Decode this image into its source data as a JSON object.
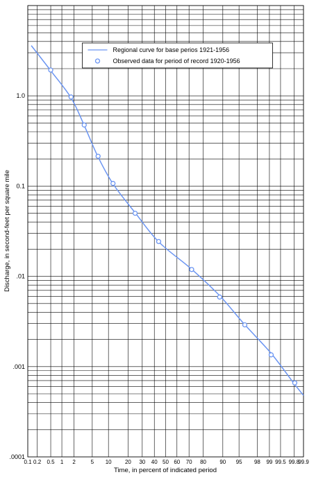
{
  "chart_data": {
    "type": "line",
    "xlabel": "Time, in percent of indicated period",
    "ylabel": "Discharge, in second-feet per square mile",
    "xscale": "probability",
    "yscale": "log",
    "xlim": [
      0.1,
      99.9
    ],
    "ylim": [
      0.0001,
      10
    ],
    "xticks": [
      0.1,
      0.2,
      0.5,
      1,
      2,
      5,
      10,
      20,
      30,
      40,
      50,
      60,
      70,
      80,
      90,
      95,
      98,
      99,
      99.5,
      99.8,
      99.9
    ],
    "yticks": [
      {
        "value": 0.0001,
        "label": ".0001"
      },
      {
        "value": 0.001,
        "label": ".001"
      },
      {
        "value": 0.01,
        "label": ".01"
      },
      0.1,
      {
        "value": 1,
        "label": "1.0"
      }
    ],
    "minor_yticks": [
      0.0002,
      0.0003,
      0.0004,
      0.0005,
      0.0006,
      0.0007,
      0.0008,
      0.0009,
      0.002,
      0.003,
      0.004,
      0.005,
      0.006,
      0.007,
      0.008,
      0.009,
      0.02,
      0.03,
      0.04,
      0.05,
      0.06,
      0.07,
      0.08,
      0.09,
      0.2,
      0.3,
      0.4,
      0.5,
      0.6,
      0.7,
      0.8,
      0.9,
      2,
      3,
      4,
      5,
      6,
      7,
      8,
      9,
      10
    ],
    "grid": true,
    "legend": "upper center",
    "series": [
      {
        "name": "Regional curve for base perios 1921-1956",
        "type": "line",
        "color": "#6b95f2",
        "x": [
          0.13,
          0.5,
          1.7,
          3.4,
          6.5,
          12,
          25,
          44,
          72,
          89,
          96,
          99.1,
          99.8,
          99.9
        ],
        "values": [
          3.6,
          1.9,
          0.95,
          0.47,
          0.21,
          0.105,
          0.05,
          0.024,
          0.012,
          0.006,
          0.003,
          0.0014,
          0.00065,
          0.00048
        ]
      },
      {
        "name": "Observed data for period of record 1920-1956",
        "type": "scatter",
        "color": "#6b95f2",
        "x": [
          0.5,
          1.7,
          3.4,
          6.5,
          11.9,
          24.7,
          43.8,
          72,
          88.7,
          96.2,
          99.1,
          99.81
        ],
        "values": [
          1.93,
          0.97,
          0.475,
          0.214,
          0.107,
          0.05,
          0.0243,
          0.0119,
          0.0059,
          0.0029,
          0.00135,
          0.00066
        ]
      }
    ]
  }
}
